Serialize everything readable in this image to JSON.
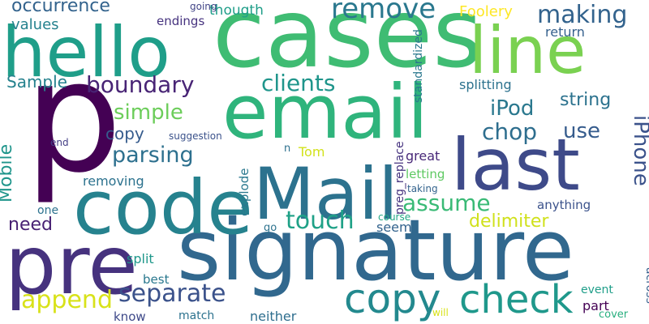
{
  "word_cloud": {
    "words": [
      {
        "text": "p",
        "color": "#440154"
      },
      {
        "text": "cases",
        "color": "#3fbc73"
      },
      {
        "text": "signature",
        "color": "#31688e"
      },
      {
        "text": "email",
        "color": "#2fb47c"
      },
      {
        "text": "hello",
        "color": "#1f9e89"
      },
      {
        "text": "code",
        "color": "#26828e"
      },
      {
        "text": "Mail",
        "color": "#2c728e"
      },
      {
        "text": "last",
        "color": "#3e4a89"
      },
      {
        "text": "pre",
        "color": "#46327e"
      },
      {
        "text": "line",
        "color": "#7ad151"
      },
      {
        "text": "check",
        "color": "#1f988b"
      },
      {
        "text": "copy",
        "color": "#23898e"
      },
      {
        "text": "remove",
        "color": "#2a788e"
      },
      {
        "text": "making",
        "color": "#33638d"
      },
      {
        "text": "touch",
        "color": "#1fa187"
      },
      {
        "text": "separate",
        "color": "#3b528b"
      },
      {
        "text": "append",
        "color": "#d8e219"
      },
      {
        "text": "parsing",
        "color": "#2d708e"
      },
      {
        "text": "simple",
        "color": "#6ccd5a"
      },
      {
        "text": "clients",
        "color": "#1f958b"
      },
      {
        "text": "boundary",
        "color": "#482475"
      },
      {
        "text": "chop",
        "color": "#2e6e8e"
      },
      {
        "text": "use",
        "color": "#365c8d"
      },
      {
        "text": "iPod",
        "color": "#2a788e"
      },
      {
        "text": "string",
        "color": "#2c728e"
      },
      {
        "text": "assume",
        "color": "#3aba76"
      },
      {
        "text": "iPhone",
        "color": "#3b528b"
      },
      {
        "text": "delimiter",
        "color": "#d0e11c"
      },
      {
        "text": "Mobile",
        "color": "#1f958b"
      },
      {
        "text": "occurrence",
        "color": "#33638d"
      },
      {
        "text": "Sample",
        "color": "#26828e"
      },
      {
        "text": "need",
        "color": "#482173"
      },
      {
        "text": "copy",
        "color": "#365c8d"
      },
      {
        "text": "Foolery",
        "color": "#fde725"
      },
      {
        "text": "Tom",
        "color": "#d2e21b"
      },
      {
        "text": "values",
        "color": "#26828e"
      },
      {
        "text": "thougth",
        "color": "#1f9e89"
      },
      {
        "text": "return",
        "color": "#35608d"
      },
      {
        "text": "splitting",
        "color": "#2c728e"
      },
      {
        "text": "standardized",
        "color": "#2a788e"
      },
      {
        "text": "preg_replace",
        "color": "#46337f"
      },
      {
        "text": "great",
        "color": "#482878"
      },
      {
        "text": "letting",
        "color": "#5ec962"
      },
      {
        "text": "removing",
        "color": "#2c728e"
      },
      {
        "text": "explode",
        "color": "#2a788e"
      },
      {
        "text": "seem",
        "color": "#33638d"
      },
      {
        "text": "split",
        "color": "#1f988b"
      },
      {
        "text": "part",
        "color": "#440154"
      },
      {
        "text": "neither",
        "color": "#2e6e8e"
      },
      {
        "text": "know",
        "color": "#3e4989"
      },
      {
        "text": "match",
        "color": "#2c728e"
      },
      {
        "text": "best",
        "color": "#2a788e"
      },
      {
        "text": "event",
        "color": "#1f9e89"
      },
      {
        "text": "cover",
        "color": "#29af7f"
      },
      {
        "text": "will",
        "color": "#d8e219"
      },
      {
        "text": "across",
        "color": "#35608d"
      },
      {
        "text": "anything",
        "color": "#3b528b"
      },
      {
        "text": "taking",
        "color": "#33638d"
      },
      {
        "text": "course",
        "color": "#22a884"
      },
      {
        "text": "go",
        "color": "#2c728e"
      },
      {
        "text": "one",
        "color": "#2c728e"
      },
      {
        "text": "end",
        "color": "#433e85"
      },
      {
        "text": "suggestion",
        "color": "#3b528b"
      },
      {
        "text": "n",
        "color": "#2d708e"
      },
      {
        "text": "endings",
        "color": "#46337f"
      },
      {
        "text": "going",
        "color": "#414487"
      }
    ]
  }
}
